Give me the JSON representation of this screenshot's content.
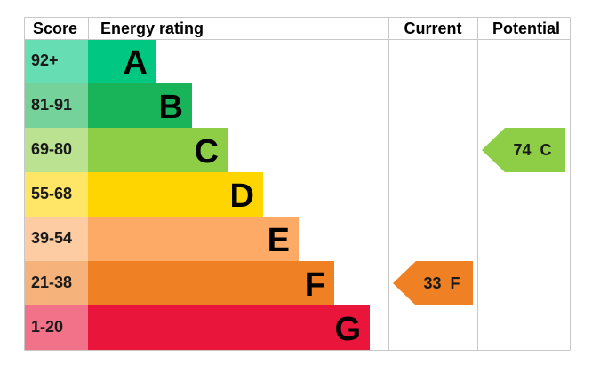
{
  "headers": {
    "score": "Score",
    "energy_rating": "Energy rating",
    "current": "Current",
    "potential": "Potential"
  },
  "chart_data": {
    "type": "bar",
    "categories": [
      "A",
      "B",
      "C",
      "D",
      "E",
      "F",
      "G"
    ],
    "score_ranges": [
      "92+",
      "81-91",
      "69-80",
      "55-68",
      "39-54",
      "21-38",
      "1-20"
    ],
    "colors": [
      "#00c781",
      "#19b459",
      "#8dce46",
      "#ffd500",
      "#fcaa65",
      "#ef8023",
      "#e9153b"
    ],
    "score_colors": [
      "#66ddb3",
      "#75d29b",
      "#bbe290",
      "#ffe666",
      "#fdcca3",
      "#f5b37b",
      "#f27389"
    ],
    "current": {
      "value": 33,
      "band": "F",
      "label": "33 F",
      "color": "#ef8023"
    },
    "potential": {
      "value": 74,
      "band": "C",
      "label": "74 C",
      "color": "#8dce46"
    }
  }
}
